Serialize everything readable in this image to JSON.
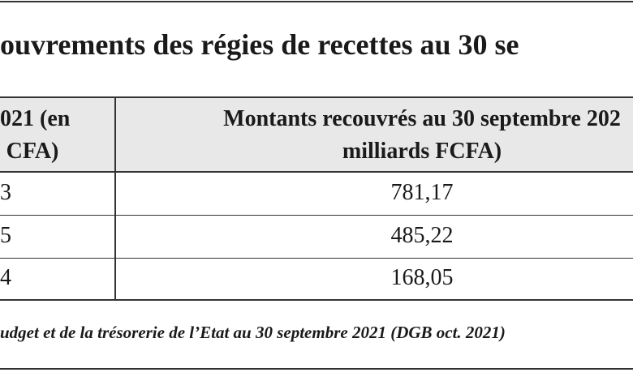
{
  "title": "ouvrements des régies de recettes au 30 se",
  "table": {
    "header": [
      [
        "021 (en",
        "CFA)"
      ],
      [
        "Montants recouvrés au 30 septembre 202",
        "milliards FCFA)"
      ]
    ],
    "rows": [
      [
        "3",
        "781,17"
      ],
      [
        "5",
        "485,22"
      ],
      [
        "4",
        "168,05"
      ]
    ]
  },
  "source": "udget et de la trésorerie de l’Etat au 30 septembre 2021 (DGB oct. 2021)"
}
